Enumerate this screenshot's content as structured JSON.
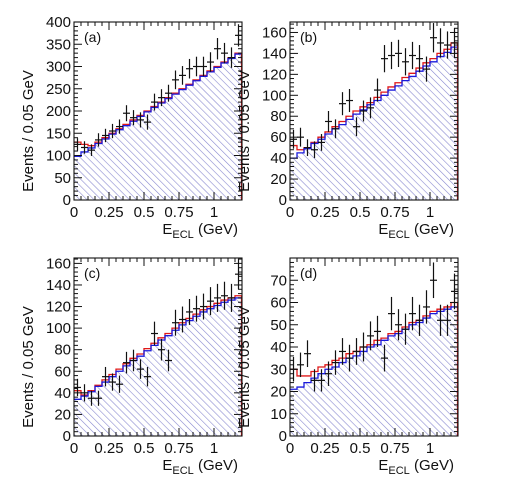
{
  "chart_data": [
    {
      "type": "histogram",
      "panel_label": "(a)",
      "xlabel": "E",
      "xlabel_sub": "ECL",
      "xlabel_unit": " (GeV)",
      "ylabel": "Events / 0.05 GeV",
      "xlim": [
        0,
        1.2
      ],
      "ylim": [
        0,
        400
      ],
      "xticks": [
        "0",
        "0.25",
        "0.5",
        "0.75",
        "1"
      ],
      "xtick_values": [
        0,
        0.25,
        0.5,
        0.75,
        1.0
      ],
      "yticks": [
        "0",
        "50",
        "100",
        "150",
        "200",
        "250",
        "300",
        "350",
        "400"
      ],
      "ytick_values": [
        0,
        50,
        100,
        150,
        200,
        250,
        300,
        350,
        400
      ],
      "bin_width": 0.05,
      "blue_hist": [
        98,
        108,
        117,
        127,
        137,
        148,
        158,
        167,
        177,
        188,
        198,
        208,
        218,
        228,
        238,
        248,
        258,
        268,
        278,
        288,
        298,
        308,
        318,
        328
      ],
      "red_hist": [
        130,
        125,
        122,
        130,
        140,
        150,
        160,
        170,
        180,
        190,
        200,
        210,
        220,
        230,
        240,
        250,
        260,
        270,
        280,
        290,
        300,
        310,
        320,
        330
      ],
      "points": {
        "x": [
          0.025,
          0.075,
          0.125,
          0.175,
          0.225,
          0.275,
          0.325,
          0.375,
          0.425,
          0.475,
          0.525,
          0.575,
          0.625,
          0.675,
          0.725,
          0.775,
          0.825,
          0.875,
          0.925,
          0.975,
          1.025,
          1.075,
          1.125,
          1.175
        ],
        "y": [
          125,
          118,
          112,
          135,
          145,
          155,
          165,
          195,
          185,
          180,
          175,
          220,
          230,
          240,
          270,
          280,
          295,
          300,
          300,
          310,
          340,
          330,
          320,
          370
        ],
        "err": [
          14,
          14,
          13,
          15,
          15,
          16,
          16,
          18,
          17,
          17,
          17,
          19,
          19,
          19,
          21,
          21,
          22,
          22,
          22,
          22,
          24,
          23,
          23,
          25
        ]
      }
    },
    {
      "type": "histogram",
      "panel_label": "(b)",
      "xlabel": "E",
      "xlabel_sub": "ECL",
      "xlabel_unit": " (GeV)",
      "ylabel": "Events / 0.05 GeV",
      "xlim": [
        0,
        1.2
      ],
      "ylim": [
        0,
        170
      ],
      "xticks": [
        "0",
        "0.25",
        "0.5",
        "0.75",
        "1"
      ],
      "xtick_values": [
        0,
        0.25,
        0.5,
        0.75,
        1.0
      ],
      "yticks": [
        "0",
        "20",
        "40",
        "60",
        "80",
        "100",
        "120",
        "140",
        "160"
      ],
      "ytick_values": [
        0,
        20,
        40,
        60,
        80,
        100,
        120,
        140,
        160
      ],
      "bin_width": 0.05,
      "blue_hist": [
        40,
        45,
        49,
        54,
        58,
        63,
        68,
        72,
        77,
        82,
        86,
        91,
        95,
        100,
        105,
        109,
        114,
        118,
        123,
        128,
        132,
        137,
        141,
        146
      ],
      "red_hist": [
        52,
        48,
        50,
        55,
        60,
        65,
        70,
        75,
        80,
        85,
        89,
        93,
        98,
        103,
        108,
        112,
        117,
        121,
        126,
        131,
        135,
        140,
        144,
        150
      ],
      "points": {
        "x": [
          0.025,
          0.075,
          0.125,
          0.175,
          0.225,
          0.275,
          0.325,
          0.375,
          0.425,
          0.475,
          0.525,
          0.575,
          0.625,
          0.675,
          0.725,
          0.775,
          0.825,
          0.875,
          0.925,
          0.975,
          1.025,
          1.075,
          1.125,
          1.175
        ],
        "y": [
          58,
          60,
          50,
          48,
          55,
          75,
          68,
          92,
          95,
          70,
          85,
          88,
          105,
          135,
          138,
          140,
          132,
          138,
          135,
          125,
          155,
          150,
          148,
          150
        ],
        "err": [
          9,
          9,
          8,
          8,
          8,
          10,
          9,
          11,
          11,
          9,
          10,
          10,
          11,
          13,
          13,
          13,
          13,
          13,
          13,
          12,
          14,
          14,
          13,
          14
        ]
      }
    },
    {
      "type": "histogram",
      "panel_label": "(c)",
      "xlabel": "E",
      "xlabel_sub": "ECL",
      "xlabel_unit": " (GeV)",
      "ylabel": "Events / 0.05 GeV",
      "xlim": [
        0,
        1.2
      ],
      "ylim": [
        0,
        165
      ],
      "xticks": [
        "0",
        "0.25",
        "0.5",
        "0.75",
        "1"
      ],
      "xtick_values": [
        0,
        0.25,
        0.5,
        0.75,
        1.0
      ],
      "yticks": [
        "0",
        "20",
        "40",
        "60",
        "80",
        "100",
        "120",
        "140",
        "160"
      ],
      "ytick_values": [
        0,
        20,
        40,
        60,
        80,
        100,
        120,
        140,
        160
      ],
      "bin_width": 0.05,
      "blue_hist": [
        34,
        37,
        41,
        46,
        50,
        55,
        60,
        65,
        70,
        74,
        79,
        84,
        89,
        93,
        98,
        103,
        107,
        111,
        115,
        118,
        121,
        124,
        126,
        128
      ],
      "red_hist": [
        42,
        38,
        42,
        47,
        52,
        57,
        62,
        67,
        72,
        76,
        81,
        86,
        91,
        95,
        100,
        105,
        109,
        113,
        117,
        120,
        123,
        126,
        128,
        130
      ],
      "points": {
        "x": [
          0.025,
          0.075,
          0.125,
          0.175,
          0.225,
          0.275,
          0.325,
          0.375,
          0.425,
          0.475,
          0.525,
          0.575,
          0.625,
          0.675,
          0.725,
          0.775,
          0.825,
          0.875,
          0.925,
          0.975,
          1.025,
          1.075,
          1.125,
          1.175
        ],
        "y": [
          45,
          40,
          35,
          35,
          55,
          50,
          48,
          68,
          70,
          62,
          55,
          95,
          80,
          70,
          105,
          108,
          115,
          118,
          120,
          125,
          128,
          130,
          128,
          150
        ],
        "err": [
          8,
          8,
          7,
          7,
          9,
          8,
          8,
          10,
          10,
          9,
          9,
          11,
          10,
          10,
          12,
          12,
          12,
          12,
          12,
          13,
          13,
          13,
          13,
          14
        ]
      }
    },
    {
      "type": "histogram",
      "panel_label": "(d)",
      "xlabel": "E",
      "xlabel_sub": "ECL",
      "xlabel_unit": " (GeV)",
      "ylabel": "Events / 0.05 GeV",
      "xlim": [
        0,
        1.2
      ],
      "ylim": [
        0,
        80
      ],
      "xticks": [
        "0",
        "0.25",
        "0.5",
        "0.75",
        "1"
      ],
      "xtick_values": [
        0,
        0.25,
        0.5,
        0.75,
        1.0
      ],
      "yticks": [
        "0",
        "10",
        "20",
        "30",
        "40",
        "50",
        "60",
        "70"
      ],
      "ytick_values": [
        0,
        10,
        20,
        30,
        40,
        50,
        60,
        70
      ],
      "bin_width": 0.05,
      "blue_hist": [
        21,
        22,
        24,
        26,
        28,
        30,
        31,
        33,
        35,
        36,
        38,
        40,
        41,
        43,
        45,
        46,
        48,
        50,
        51,
        53,
        55,
        56,
        57,
        58
      ],
      "red_hist": [
        30,
        27,
        27,
        29,
        31,
        32,
        34,
        35,
        37,
        38,
        40,
        41,
        43,
        44,
        46,
        47,
        49,
        51,
        52,
        54,
        56,
        57,
        58,
        60
      ],
      "points": {
        "x": [
          0.025,
          0.075,
          0.125,
          0.175,
          0.225,
          0.275,
          0.325,
          0.375,
          0.425,
          0.475,
          0.525,
          0.575,
          0.625,
          0.675,
          0.725,
          0.775,
          0.825,
          0.875,
          0.925,
          0.975,
          1.025,
          1.075,
          1.125,
          1.175
        ],
        "y": [
          30,
          32,
          37,
          25,
          25,
          28,
          33,
          38,
          35,
          38,
          40,
          45,
          47,
          35,
          55,
          50,
          48,
          55,
          52,
          58,
          70,
          52,
          52,
          65
        ],
        "err": [
          5.5,
          5.5,
          6,
          5,
          5,
          5.5,
          5.5,
          6,
          6,
          6,
          6.5,
          6.5,
          7,
          6,
          7.5,
          7,
          7,
          7.5,
          7,
          7.5,
          8,
          7,
          7,
          8
        ]
      }
    }
  ],
  "colors": {
    "blue": "#1a1adc",
    "red": "#e01818",
    "hatch": "#8a8ad0",
    "points": "#111111",
    "axis": "#111111"
  }
}
